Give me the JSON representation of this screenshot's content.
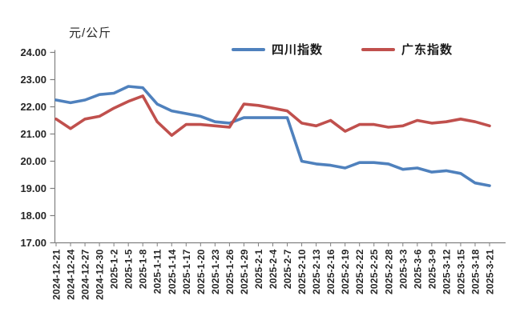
{
  "chart": {
    "axis_color": "#808080",
    "text_color": "#262626",
    "accent_blue": "#4F81BD",
    "accent_red": "#C0504D"
  },
  "chart_data": {
    "type": "line",
    "title": "",
    "ylabel": "元/公斤",
    "xlabel": "",
    "ylim": [
      17,
      24
    ],
    "ytick_step": 1,
    "grid": false,
    "legend_position": "top",
    "yticks": [
      "24.00",
      "23.00",
      "22.00",
      "21.00",
      "20.00",
      "19.00",
      "18.00",
      "17.00"
    ],
    "categories": [
      "2024-12-21",
      "2024-12-24",
      "2024-12-27",
      "2024-12-30",
      "2025-1-2",
      "2025-1-5",
      "2025-1-8",
      "2025-1-11",
      "2025-1-14",
      "2025-1-17",
      "2025-1-20",
      "2025-1-23",
      "2025-1-26",
      "2025-1-29",
      "2025-2-1",
      "2025-2-4",
      "2025-2-7",
      "2025-2-10",
      "2025-2-13",
      "2025-2-16",
      "2025-2-19",
      "2025-2-22",
      "2025-2-25",
      "2025-2-28",
      "2025-3-3",
      "2025-3-6",
      "2025-3-9",
      "2025-3-12",
      "2025-3-15",
      "2025-3-18",
      "2025-3-21"
    ],
    "series": [
      {
        "name": "四川指数",
        "color": "#4F81BD",
        "values": [
          22.25,
          22.15,
          22.25,
          22.45,
          22.5,
          22.75,
          22.7,
          22.1,
          21.85,
          21.75,
          21.65,
          21.45,
          21.4,
          21.6,
          21.6,
          21.6,
          21.6,
          20.0,
          19.9,
          19.85,
          19.75,
          19.95,
          19.95,
          19.9,
          19.7,
          19.75,
          19.6,
          19.65,
          19.55,
          19.2,
          19.1
        ]
      },
      {
        "name": "广东指数",
        "color": "#C0504D",
        "values": [
          21.55,
          21.2,
          21.55,
          21.65,
          21.95,
          22.2,
          22.4,
          21.45,
          20.95,
          21.35,
          21.35,
          21.3,
          21.25,
          22.1,
          22.05,
          21.95,
          21.85,
          21.4,
          21.3,
          21.5,
          21.1,
          21.35,
          21.35,
          21.25,
          21.3,
          21.5,
          21.4,
          21.45,
          21.55,
          21.45,
          21.3
        ]
      }
    ]
  }
}
